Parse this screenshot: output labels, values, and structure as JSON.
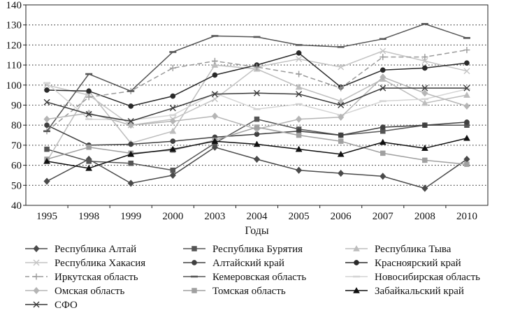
{
  "chart_data": {
    "type": "line",
    "title": "",
    "xlabel": "Годы",
    "ylabel": "",
    "ylim": [
      40,
      140
    ],
    "yticks": [
      40,
      50,
      60,
      70,
      80,
      90,
      100,
      110,
      120,
      130,
      140
    ],
    "grid": "horizontal dotted",
    "legend_position": "bottom",
    "categories": [
      "1995",
      "1998",
      "1999",
      "2000",
      "2003",
      "2004",
      "2005",
      "2006",
      "2007",
      "2008",
      "2010"
    ],
    "series": [
      {
        "name": "Республика Алтай",
        "marker": "diamond",
        "filled": true,
        "color": "#4a4a4a",
        "dashed": false,
        "values": [
          52,
          63,
          51,
          55,
          69,
          63,
          57.5,
          56,
          54.5,
          48.5,
          63
        ]
      },
      {
        "name": "Республика Бурятия",
        "marker": "square",
        "filled": true,
        "color": "#555555",
        "dashed": false,
        "values": [
          68,
          62,
          61,
          57.5,
          71,
          83,
          78,
          75,
          77,
          80,
          80
        ]
      },
      {
        "name": "Республика Тыва",
        "marker": "triangle",
        "filled": true,
        "color": "#bdbdbd",
        "dashed": false,
        "values": [
          62,
          97,
          71,
          77,
          110,
          108,
          99,
          92,
          103,
          91,
          95
        ]
      },
      {
        "name": "Республика Хакасия",
        "marker": "x",
        "filled": false,
        "color": "#c4c4c4",
        "dashed": false,
        "values": [
          100,
          95,
          80,
          83,
          93,
          109,
          113,
          109,
          117,
          112,
          107
        ]
      },
      {
        "name": "Алтайский край",
        "marker": "circle",
        "filled": true,
        "color": "#404040",
        "dashed": false,
        "values": [
          80,
          70,
          70.5,
          72,
          74,
          75.5,
          77,
          75,
          79,
          80,
          81.5
        ]
      },
      {
        "name": "Красноярский край",
        "marker": "circle",
        "filled": true,
        "color": "#2a2a2a",
        "dashed": false,
        "values": [
          97.5,
          97,
          89.5,
          94.5,
          105,
          110,
          116,
          99,
          107.5,
          108.5,
          111
        ]
      },
      {
        "name": "Иркутская область",
        "marker": "plus",
        "filled": false,
        "color": "#9a9a9a",
        "dashed": true,
        "values": [
          77,
          94,
          97,
          108.5,
          112,
          109,
          105.5,
          98.5,
          114,
          114,
          117.5
        ]
      },
      {
        "name": "Кемеровская область",
        "marker": "dash",
        "filled": false,
        "color": "#555555",
        "dashed": false,
        "values": [
          77,
          105.5,
          97,
          116.5,
          124.5,
          124,
          120,
          119,
          123,
          130.5,
          123.5
        ]
      },
      {
        "name": "Новосибирская область",
        "marker": "dash",
        "filled": false,
        "color": "#d4d4d4",
        "dashed": false,
        "values": [
          101,
          83,
          82.5,
          85,
          96,
          88,
          90.5,
          85,
          92,
          93,
          98
        ]
      },
      {
        "name": "Омская область",
        "marker": "diamond",
        "filled": true,
        "color": "#b5b5b5",
        "dashed": false,
        "values": [
          83,
          86,
          80,
          82,
          84.5,
          78,
          83,
          84,
          104,
          96,
          89.5
        ]
      },
      {
        "name": "Томская область",
        "marker": "square",
        "filled": true,
        "color": "#a0a0a0",
        "dashed": false,
        "values": [
          63,
          69,
          66,
          67.5,
          72.5,
          79,
          75,
          72,
          66,
          62.5,
          60.5
        ]
      },
      {
        "name": "Забайкальский край",
        "marker": "triangle",
        "filled": true,
        "color": "#111111",
        "dashed": false,
        "values": [
          62,
          58.5,
          65.5,
          68,
          72,
          70.5,
          68,
          65.5,
          71.5,
          68.5,
          73.5
        ]
      },
      {
        "name": "СФО",
        "marker": "x",
        "filled": false,
        "color": "#3a3a3a",
        "dashed": false,
        "values": [
          91.5,
          85.5,
          82,
          88.5,
          95.5,
          96,
          95.5,
          90,
          98.5,
          98.5,
          98.5
        ]
      }
    ]
  }
}
